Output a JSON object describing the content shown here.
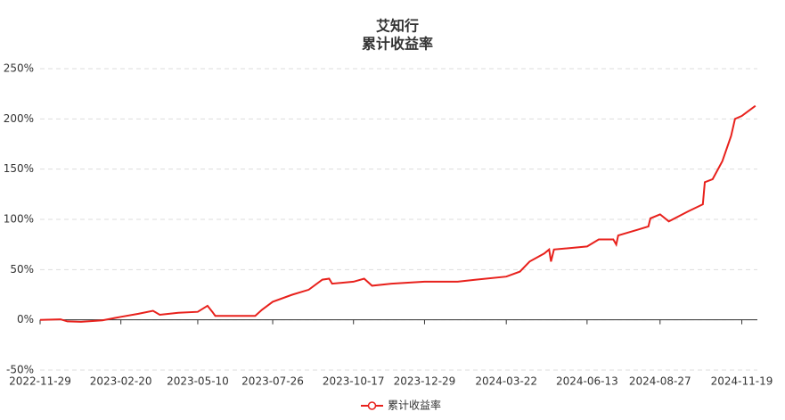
{
  "chart_data": {
    "type": "line",
    "title": "艾知行",
    "subtitle": "累计收益率",
    "x": [
      "2022-11-29",
      "2022-12-20",
      "2022-12-27",
      "2023-01-10",
      "2023-02-01",
      "2023-02-20",
      "2023-03-10",
      "2023-03-25",
      "2023-04-01",
      "2023-04-20",
      "2023-05-10",
      "2023-05-20",
      "2023-05-25",
      "2023-05-28",
      "2023-06-15",
      "2023-07-08",
      "2023-07-15",
      "2023-07-26",
      "2023-08-15",
      "2023-09-01",
      "2023-09-15",
      "2023-09-22",
      "2023-09-25",
      "2023-10-17",
      "2023-10-28",
      "2023-11-05",
      "2023-11-25",
      "2023-12-29",
      "2024-02-01",
      "2024-02-20",
      "2024-03-22",
      "2024-04-05",
      "2024-04-15",
      "2024-04-30",
      "2024-05-05",
      "2024-05-07",
      "2024-05-10",
      "2024-06-13",
      "2024-06-25",
      "2024-07-10",
      "2024-07-13",
      "2024-07-15",
      "2024-08-05",
      "2024-08-15",
      "2024-08-17",
      "2024-08-27",
      "2024-09-05",
      "2024-09-25",
      "2024-10-10",
      "2024-10-12",
      "2024-10-20",
      "2024-10-30",
      "2024-11-08",
      "2024-11-12",
      "2024-11-19",
      "2024-12-03"
    ],
    "series": [
      {
        "name": "累计收益率",
        "color": "#e8211c",
        "values": [
          0,
          0.5,
          -1.5,
          -2,
          -0.5,
          3,
          6,
          9,
          5,
          7,
          8,
          14,
          8,
          4,
          4,
          4,
          10,
          18,
          25,
          30,
          40,
          41,
          36,
          38,
          41,
          34,
          36,
          38,
          38,
          40,
          43,
          48,
          58,
          66,
          70,
          58,
          70,
          73,
          80,
          80,
          75,
          84,
          90,
          93,
          101,
          105,
          98,
          108,
          115,
          137,
          140,
          158,
          183,
          200,
          203,
          213
        ]
      }
    ],
    "xlim": [
      "2022-11-29",
      "2024-12-05"
    ],
    "xticks": [
      "2022-11-29",
      "2023-02-20",
      "2023-05-10",
      "2023-07-26",
      "2023-10-17",
      "2023-12-29",
      "2024-03-22",
      "2024-06-13",
      "2024-08-27",
      "2024-11-19"
    ],
    "ylim": [
      -50,
      250
    ],
    "yticks": [
      {
        "value": -50,
        "label": "-50%"
      },
      {
        "value": 0,
        "label": "0%"
      },
      {
        "value": 50,
        "label": "50%"
      },
      {
        "value": 100,
        "label": "100%"
      },
      {
        "value": 150,
        "label": "150%"
      },
      {
        "value": 200,
        "label": "200%"
      },
      {
        "value": 250,
        "label": "250%"
      }
    ],
    "grid": true
  }
}
